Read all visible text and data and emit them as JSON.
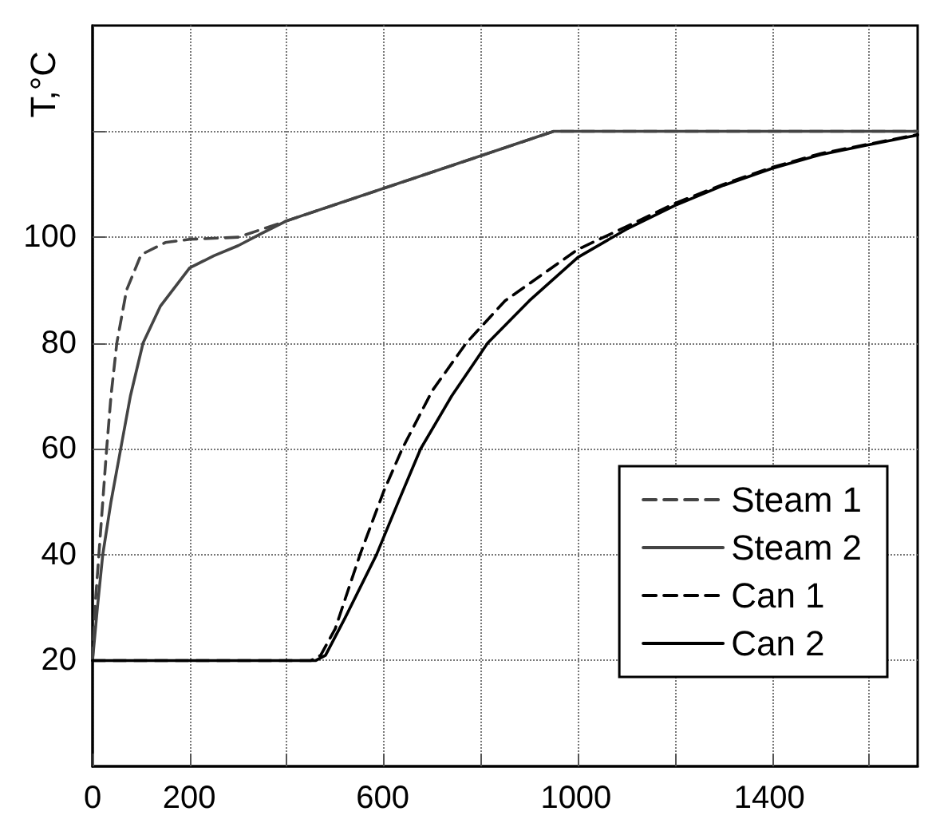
{
  "chart_data": {
    "type": "line",
    "ylabel": "T,°C",
    "xlim": [
      0,
      1700
    ],
    "ylim": [
      0,
      140
    ],
    "xticks": [
      0,
      200,
      {
        "value": 400,
        "label": null
      },
      600,
      {
        "value": 800,
        "label": null
      },
      1000,
      {
        "value": 1200,
        "label": null
      },
      1400,
      {
        "value": 1600,
        "label": null
      }
    ],
    "yticks": [
      20,
      40,
      60,
      80,
      100,
      {
        "value": 120,
        "label": null
      }
    ],
    "grid": true,
    "legend": "bottom right",
    "marker": "none",
    "series": [
      {
        "name": "Steam 1",
        "color": "#444444",
        "line_style": "dashed",
        "x": [
          0,
          5,
          13,
          21,
          29,
          38,
          50,
          70,
          100,
          150,
          200,
          300,
          950,
          1700
        ],
        "values": [
          20,
          30,
          40,
          50,
          60,
          70,
          80,
          90,
          96.7,
          99,
          99.6,
          100,
          120,
          120
        ]
      },
      {
        "name": "Steam 2",
        "color": "#444444",
        "line_style": "solid",
        "x": [
          0,
          10,
          21,
          38,
          58,
          78,
          104,
          140,
          200,
          250,
          300,
          350,
          400,
          950,
          1700
        ],
        "values": [
          20,
          30,
          40,
          50,
          60,
          70,
          80,
          87,
          94.2,
          96.5,
          98.4,
          100.8,
          103.1,
          120,
          120
        ]
      },
      {
        "name": "Can 1",
        "color": "#000000",
        "line_style": "dashed",
        "x": [
          0,
          450,
          470,
          500,
          551,
          600,
          638,
          700,
          770,
          850,
          1000,
          1100,
          1200,
          1300,
          1400,
          1500,
          1600,
          1700
        ],
        "values": [
          20,
          20,
          21,
          26,
          40,
          52,
          60,
          71,
          80,
          88,
          97.7,
          102,
          106.4,
          110,
          113.2,
          115.8,
          117.6,
          119.4
        ]
      },
      {
        "name": "Can 2",
        "color": "#000000",
        "line_style": "solid",
        "x": [
          0,
          460,
          480,
          520,
          585,
          630,
          676,
          740,
          814,
          900,
          1000,
          1100,
          1200,
          1300,
          1400,
          1500,
          1600,
          1700
        ],
        "values": [
          20,
          20,
          21,
          28,
          40,
          50,
          60,
          70,
          80,
          88,
          96.2,
          101.5,
          106,
          109.8,
          113,
          115.6,
          117.5,
          119.3
        ]
      }
    ]
  }
}
